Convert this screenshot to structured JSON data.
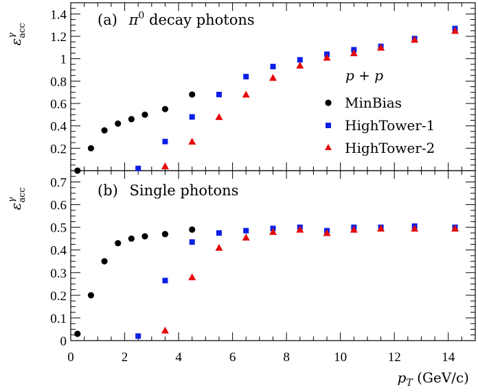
{
  "colors": {
    "minbias": "#000000",
    "ht1": "#0a1fe6",
    "ht2": "#e60a0a"
  },
  "legend": {
    "header": "p + p",
    "entries": [
      {
        "key": "minbias",
        "label": "MinBias",
        "marker": "circle"
      },
      {
        "key": "ht1",
        "label": "HighTower-1",
        "marker": "square"
      },
      {
        "key": "ht2",
        "label": "HighTower-2",
        "marker": "triangle"
      }
    ]
  },
  "xaxis": {
    "label": "p_T (GeV/c)",
    "label_main": "p",
    "label_sub": "T",
    "label_unit": " (GeV/c)",
    "range": [
      0,
      15
    ],
    "ticks": [
      0,
      2,
      4,
      6,
      8,
      10,
      12,
      14
    ]
  },
  "chart_data": [
    {
      "type": "scatter",
      "title": "(a)  π⁰ decay photons",
      "title_prefix": "(a)",
      "title_main": "π",
      "title_sup": "0",
      "title_rest": " decay photons",
      "ylabel": "εaccγ",
      "ylabel_main": "ε",
      "ylabel_sup": "γ",
      "ylabel_sub": "acc",
      "xlim": [
        0,
        15
      ],
      "ylim": [
        0,
        1.5
      ],
      "yticks": [
        0.2,
        0.4,
        0.6,
        0.8,
        1,
        1.2,
        1.4
      ],
      "ytick_labels": [
        "0.2",
        "0.4",
        "0.6",
        "0.8",
        "1",
        "1.2",
        "1.4"
      ],
      "series": [
        {
          "key": "minbias",
          "name": "MinBias",
          "x": [
            0.25,
            0.75,
            1.25,
            1.75,
            2.25,
            2.75,
            3.5,
            4.5
          ],
          "y": [
            0.0,
            0.2,
            0.36,
            0.42,
            0.46,
            0.5,
            0.55,
            0.68
          ]
        },
        {
          "key": "ht1",
          "name": "HighTower-1",
          "x": [
            2.5,
            3.5,
            4.5,
            5.5,
            6.5,
            7.5,
            8.5,
            9.5,
            10.5,
            11.5,
            12.75,
            14.25
          ],
          "y": [
            0.02,
            0.26,
            0.48,
            0.68,
            0.84,
            0.93,
            0.99,
            1.04,
            1.08,
            1.11,
            1.18,
            1.27
          ]
        },
        {
          "key": "ht2",
          "name": "HighTower-2",
          "x": [
            3.5,
            4.5,
            5.5,
            6.5,
            7.5,
            8.5,
            9.5,
            10.5,
            11.5,
            12.75,
            14.25
          ],
          "y": [
            0.04,
            0.26,
            0.48,
            0.68,
            0.83,
            0.94,
            1.01,
            1.05,
            1.1,
            1.17,
            1.25
          ]
        }
      ]
    },
    {
      "type": "scatter",
      "title": "(b)  Single photons",
      "title_prefix": "(b)",
      "title_main": "Single photons",
      "ylabel": "εaccγ",
      "ylabel_main": "ε",
      "ylabel_sup": "γ",
      "ylabel_sub": "acc",
      "xlim": [
        0,
        15
      ],
      "ylim": [
        0,
        0.75
      ],
      "yticks": [
        0,
        0.1,
        0.2,
        0.3,
        0.4,
        0.5,
        0.6,
        0.7
      ],
      "ytick_labels": [
        "0",
        "0.1",
        "0.2",
        "0.3",
        "0.4",
        "0.5",
        "0.6",
        "0.7"
      ],
      "series": [
        {
          "key": "minbias",
          "name": "MinBias",
          "x": [
            0.25,
            0.75,
            1.25,
            1.75,
            2.25,
            2.75,
            3.5,
            4.5
          ],
          "y": [
            0.03,
            0.2,
            0.35,
            0.43,
            0.45,
            0.46,
            0.47,
            0.49
          ]
        },
        {
          "key": "ht1",
          "name": "HighTower-1",
          "x": [
            2.5,
            3.5,
            4.5,
            5.5,
            6.5,
            7.5,
            8.5,
            9.5,
            10.5,
            11.5,
            12.75,
            14.25
          ],
          "y": [
            0.02,
            0.265,
            0.435,
            0.475,
            0.485,
            0.495,
            0.5,
            0.485,
            0.5,
            0.5,
            0.505,
            0.5
          ]
        },
        {
          "key": "ht2",
          "name": "HighTower-2",
          "x": [
            3.5,
            4.5,
            5.5,
            6.5,
            7.5,
            8.5,
            9.5,
            10.5,
            11.5,
            12.75,
            14.25
          ],
          "y": [
            0.045,
            0.28,
            0.41,
            0.455,
            0.48,
            0.49,
            0.475,
            0.49,
            0.495,
            0.495,
            0.495
          ]
        }
      ]
    }
  ]
}
